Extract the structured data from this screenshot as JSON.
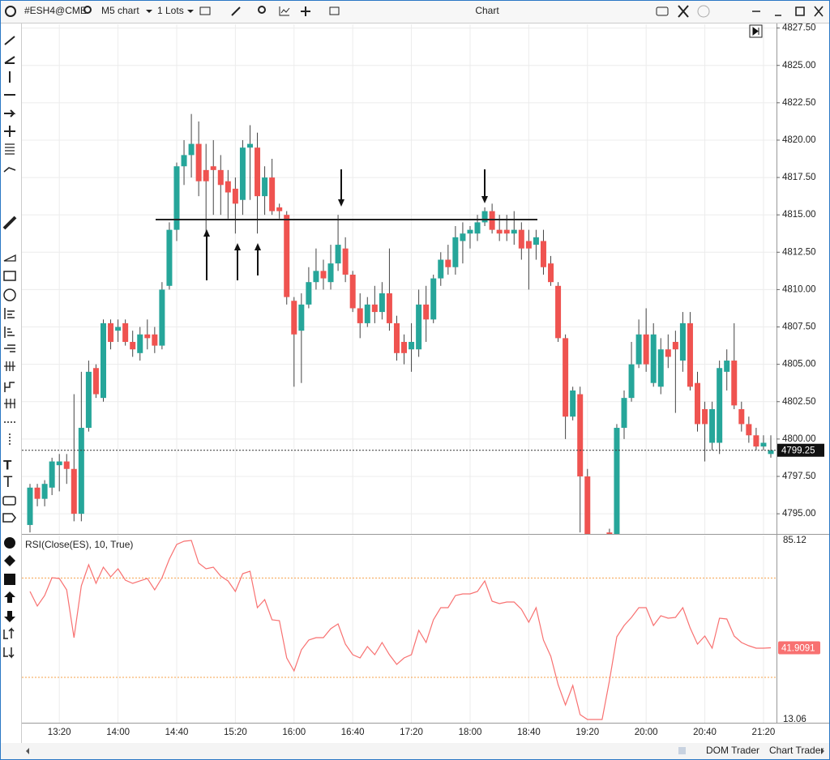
{
  "toolbar": {
    "symbol": "#ESH4@CME",
    "timeframe": "M5 chart",
    "lots": "1 Lots",
    "title": "Chart"
  },
  "chart_data": [
    {
      "type": "candlestick",
      "x": [
        "13:00",
        "13:05",
        "13:10",
        "13:15",
        "13:20",
        "13:25",
        "13:30",
        "13:35",
        "13:40",
        "13:45",
        "13:50",
        "13:55",
        "14:00",
        "14:05",
        "14:10",
        "14:15",
        "14:20",
        "14:25",
        "14:30",
        "14:35",
        "14:40",
        "14:45",
        "14:50",
        "14:55",
        "15:00",
        "15:05",
        "15:10",
        "15:15",
        "15:20",
        "15:25",
        "15:30",
        "15:35",
        "15:40",
        "15:45",
        "15:50",
        "15:55",
        "16:00",
        "16:05",
        "16:10",
        "16:15",
        "16:20",
        "16:25",
        "16:30",
        "16:35",
        "16:40",
        "16:45",
        "16:50",
        "16:55",
        "17:00",
        "17:05",
        "17:10",
        "17:15",
        "17:20",
        "17:25",
        "17:30",
        "17:35",
        "17:40",
        "17:45",
        "17:50",
        "17:55",
        "18:00",
        "18:05",
        "18:10",
        "18:15",
        "18:20",
        "18:25",
        "18:30",
        "18:35",
        "18:40",
        "18:45",
        "18:50",
        "18:55",
        "19:00",
        "19:05",
        "19:10",
        "19:15",
        "19:20",
        "19:25",
        "19:30",
        "19:35",
        "19:40",
        "19:45",
        "19:50",
        "19:55",
        "20:00",
        "20:05",
        "20:10",
        "20:15",
        "20:20",
        "20:25",
        "20:30",
        "20:35",
        "20:40",
        "20:45",
        "20:50",
        "20:55",
        "21:00",
        "21:05",
        "21:10",
        "21:15",
        "21:20",
        "21:25"
      ],
      "open": [
        4794.25,
        4796.75,
        4796,
        4796.75,
        4798.25,
        4798.5,
        4798,
        4795,
        4800.75,
        4804.75,
        4802.75,
        4807.75,
        4807.25,
        4807.75,
        4806.5,
        4805.75,
        4807,
        4807,
        4806.25,
        4810.25,
        4814,
        4818.25,
        4819,
        4819.75,
        4818,
        4818.25,
        4818,
        4817.25,
        4816.75,
        4816,
        4819.5,
        4819.5,
        4816.25,
        4817.5,
        4815.5,
        4815,
        4809.25,
        4807.25,
        4809,
        4810.5,
        4811.25,
        4810.5,
        4811.75,
        4812.75,
        4811,
        4808.75,
        4807.75,
        4809,
        4808.5,
        4809.75,
        4807.75,
        4806.5,
        4806,
        4806,
        4809,
        4808,
        4810.75,
        4812,
        4811.5,
        4813.25,
        4813.75,
        4813.75,
        4814.5,
        4815.25,
        4814,
        4814,
        4813.75,
        4814,
        4813.25,
        4813,
        4813.25,
        4811.75,
        4810.25,
        4806.75,
        4801.5,
        4803,
        4797.5,
        null,
        null,
        4793.75,
        4793,
        4800.75,
        4802.75,
        4805,
        4807,
        4803.75,
        4803.5,
        4806,
        4806.5,
        4805.25,
        4807.75,
        4803.75,
        4802,
        4799.75,
        4799.75,
        4804.5,
        4805.25,
        4802,
        4801,
        4800.25,
        4799.5,
        4799
      ],
      "high": [
        4797,
        4797,
        4797.25,
        4798.75,
        4799,
        4799,
        4803,
        4804.5,
        4805.25,
        4805,
        4808,
        4808,
        4808,
        4808,
        4807.25,
        4807.5,
        4808,
        4807.5,
        4810.5,
        4814.5,
        4818.5,
        4820,
        4821.75,
        4821.25,
        4819.75,
        4820,
        4819,
        4818,
        4817.5,
        4820,
        4821,
        4820.5,
        4818.25,
        4818.75,
        4815.75,
        4815.25,
        4809.5,
        4809.75,
        4811.5,
        4812.75,
        4812,
        4813,
        4815,
        4813.5,
        4811.25,
        4809.75,
        4809.5,
        4810.25,
        4810.5,
        4812.75,
        4808.25,
        4807,
        4807.75,
        4810,
        4810.25,
        4811,
        4812.5,
        4813,
        4814.25,
        4814.5,
        4814.25,
        4815,
        4815.5,
        4815.75,
        4815,
        4815,
        4815.25,
        4814.5,
        4814,
        4814,
        4814,
        4812.25,
        4810.5,
        4807,
        4803.5,
        4803.5,
        4798,
        null,
        null,
        4794,
        4801,
        4803.25,
        4806.5,
        4808,
        4808.75,
        4807.75,
        4806.75,
        4807,
        4807.25,
        4808.5,
        4808.5,
        4804.5,
        4802.5,
        4802.5,
        4805.25,
        4806,
        4807.75,
        4802.5,
        4801.5,
        4800.75,
        4800.25,
        4800.25
      ],
      "low": [
        4793.75,
        4795.5,
        4795.5,
        4796.25,
        4796.5,
        4797,
        4794.5,
        4794.5,
        4800.5,
        4802.75,
        4802.5,
        4806,
        4806.5,
        4806.25,
        4805.5,
        4805.25,
        4806,
        4805.75,
        4806,
        4810,
        4813.25,
        4817,
        4817.5,
        4816.25,
        4813.75,
        4815,
        4815,
        4814.75,
        4813.75,
        4815,
        4816,
        4813.75,
        4815,
        4815,
        4814.75,
        4809,
        4803.5,
        4803.75,
        4808.75,
        4810,
        4810,
        4810,
        4811.25,
        4810.5,
        4808.5,
        4806.75,
        4807.5,
        4807.75,
        4808,
        4807.25,
        4805.25,
        4805,
        4804.5,
        4805.5,
        4806.5,
        4807.75,
        4810.25,
        4811,
        4811,
        4811.75,
        4812.75,
        4813.25,
        4814.25,
        4813.75,
        4813.25,
        4813.25,
        4813,
        4812,
        4810,
        4812,
        4811,
        4810.25,
        4806.5,
        4800,
        4801.25,
        4793.75,
        4793,
        null,
        null,
        4792,
        4792.5,
        4800,
        4802.5,
        4804.75,
        4804.5,
        4803.5,
        4803,
        4804.75,
        4801.75,
        4804.5,
        4803.25,
        4800.5,
        4798.5,
        4799.25,
        4799,
        4803.25,
        4802,
        4800.5,
        4799.75,
        4799.25,
        4799.25,
        4798.75
      ],
      "close": [
        4796.75,
        4796,
        4797,
        4798.5,
        4798.5,
        4798,
        4795,
        4800.75,
        4804.5,
        4803,
        4807.75,
        4806.5,
        4807.5,
        4806.5,
        4806,
        4807,
        4806.75,
        4806.25,
        4810,
        4814,
        4818.25,
        4819,
        4819.75,
        4817.25,
        4817.25,
        4818,
        4817,
        4816.5,
        4815.75,
        4819.5,
        4819.75,
        4816.25,
        4817.5,
        4815.25,
        4815.25,
        4809.5,
        4807,
        4809,
        4810.5,
        4811.25,
        4810.75,
        4811.75,
        4813,
        4811,
        4808.75,
        4807.75,
        4809,
        4808.5,
        4809.75,
        4807.75,
        4805.75,
        4805.75,
        4806.5,
        4809,
        4808,
        4810.75,
        4812,
        4811.5,
        4813.5,
        4813.75,
        4814,
        4814.5,
        4815.25,
        4814,
        4813.75,
        4813.75,
        4814,
        4812.75,
        4812.75,
        4813.5,
        4811.5,
        4810.5,
        4806.75,
        4801.5,
        4803.25,
        4797.5,
        4793.5,
        null,
        null,
        4793,
        4800.75,
        4802.75,
        4805,
        4807,
        4805,
        4807,
        4806,
        4805.5,
        4806,
        4807.75,
        4803.5,
        4801,
        4801,
        4802,
        4804.75,
        4805.25,
        4802.25,
        4801,
        4800.25,
        4799.5,
        4799.75,
        4799.25
      ],
      "up_color": "#26a69a",
      "down_color": "#ef5350",
      "ylim": [
        4793.65,
        4827.75
      ],
      "yticks": [
        {
          "value": 4795,
          "label": "4795.00"
        },
        {
          "value": 4797.5,
          "label": "4797.50"
        },
        {
          "value": 4800,
          "label": "4800.00"
        },
        {
          "value": 4802.5,
          "label": "4802.50"
        },
        {
          "value": 4805,
          "label": "4805.00"
        },
        {
          "value": 4807.5,
          "label": "4807.50"
        },
        {
          "value": 4810,
          "label": "4810.00"
        },
        {
          "value": 4812.5,
          "label": "4812.50"
        },
        {
          "value": 4815,
          "label": "4815.00"
        },
        {
          "value": 4817.5,
          "label": "4817.50"
        },
        {
          "value": 4820,
          "label": "4820.00"
        },
        {
          "value": 4822.5,
          "label": "4822.50"
        },
        {
          "value": 4825,
          "label": "4825.00"
        },
        {
          "value": 4827.5,
          "label": "4827.50"
        }
      ],
      "xticks": [
        "13:20",
        "14:00",
        "14:40",
        "15:20",
        "16:00",
        "16:40",
        "17:20",
        "18:00",
        "18:40",
        "19:20",
        "20:00",
        "20:40",
        "21:20"
      ],
      "grid": true
    },
    {
      "type": "line",
      "title": "RSI(Close(ES), 10, True)",
      "color": "#f87171",
      "level_color": "#f5a04a",
      "x": [
        "13:00",
        "13:05",
        "13:10",
        "13:15",
        "13:20",
        "13:25",
        "13:30",
        "13:35",
        "13:40",
        "13:45",
        "13:50",
        "13:55",
        "14:00",
        "14:05",
        "14:10",
        "14:15",
        "14:20",
        "14:25",
        "14:30",
        "14:35",
        "14:40",
        "14:45",
        "14:50",
        "14:55",
        "15:00",
        "15:05",
        "15:10",
        "15:15",
        "15:20",
        "15:25",
        "15:30",
        "15:35",
        "15:40",
        "15:45",
        "15:50",
        "15:55",
        "16:00",
        "16:05",
        "16:10",
        "16:15",
        "16:20",
        "16:25",
        "16:30",
        "16:35",
        "16:40",
        "16:45",
        "16:50",
        "16:55",
        "17:00",
        "17:05",
        "17:10",
        "17:15",
        "17:20",
        "17:25",
        "17:30",
        "17:35",
        "17:40",
        "17:45",
        "17:50",
        "17:55",
        "18:00",
        "18:05",
        "18:10",
        "18:15",
        "18:20",
        "18:25",
        "18:30",
        "18:35",
        "18:40",
        "18:45",
        "18:50",
        "18:55",
        "19:00",
        "19:05",
        "19:10",
        "19:15",
        "19:20",
        "19:25",
        "19:30",
        "19:35",
        "19:40",
        "19:45",
        "19:50",
        "19:55",
        "20:00",
        "20:05",
        "20:10",
        "20:15",
        "20:20",
        "20:25",
        "20:30",
        "20:35",
        "20:40",
        "20:45",
        "20:50",
        "20:55",
        "21:00",
        "21:05",
        "21:10",
        "21:15",
        "21:20",
        "21:25"
      ],
      "values": [
        64.58,
        58.71,
        62.95,
        70.12,
        69.8,
        65.23,
        45.99,
        66.86,
        75.34,
        67.84,
        74.36,
        70.45,
        73.71,
        69.14,
        67.84,
        68.82,
        69.8,
        65.23,
        70.12,
        77.62,
        83.49,
        84.79,
        85.12,
        75.99,
        73.71,
        74.36,
        70.77,
        68.82,
        64.58,
        71.75,
        72.73,
        58.06,
        61.32,
        53.17,
        52.84,
        37.84,
        32.62,
        41.1,
        45.02,
        45.99,
        45.99,
        49.58,
        51.54,
        43.39,
        39.14,
        37.84,
        42.41,
        39.14,
        44.04,
        39.14,
        35.23,
        37.84,
        39.14,
        48.93,
        44.04,
        53.17,
        58.06,
        58.06,
        62.95,
        63.6,
        63.6,
        64.58,
        68.82,
        60.67,
        59.69,
        60.34,
        60.34,
        57.41,
        52.19,
        58.06,
        45.02,
        38.49,
        27.08,
        18.93,
        26.75,
        15.01,
        13.06,
        13.06,
        13.06,
        28.71,
        46.32,
        50.88,
        54.14,
        58.06,
        58.06,
        50.88,
        54.8,
        53.82,
        54.14,
        58.06,
        49.91,
        43.39,
        46.65,
        41.76,
        53.82,
        53.5,
        46.65,
        44.04,
        42.73,
        41.76,
        41.76,
        41.9091
      ],
      "ylim": [
        13.06,
        85.12
      ],
      "yticks": [
        85.12,
        13.06
      ],
      "levels": [
        70,
        30
      ]
    }
  ],
  "footer": {
    "tabs": [
      "DOM Trader",
      "Chart Trader"
    ]
  }
}
